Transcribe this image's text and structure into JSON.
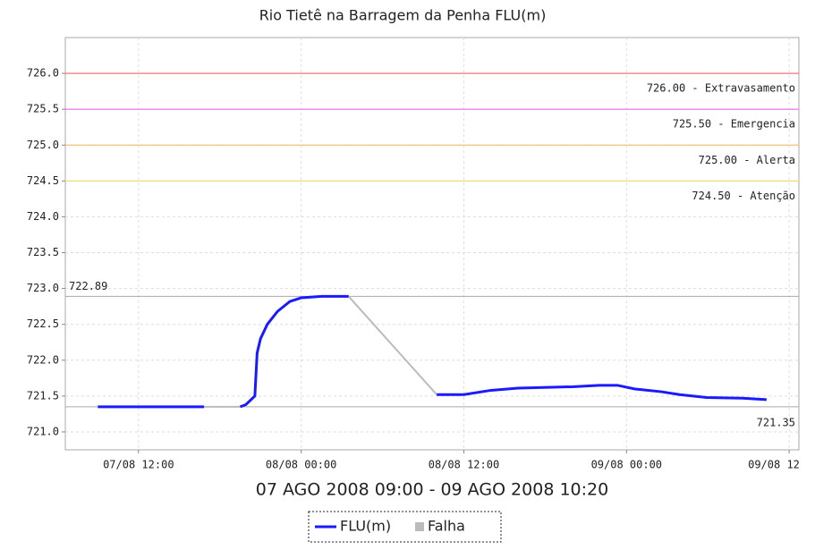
{
  "chart_data": {
    "type": "line",
    "title": "Rio Tietê na Barragem da Penha FLU(m)",
    "xlabel": "07 AGO 2008 09:00 - 09 AGO 2008 10:20",
    "xlim": [
      "07/08 06:36",
      "09/08 12:43"
    ],
    "xticks": [
      "07/08 12:00",
      "08/08 00:00",
      "08/08 12:00",
      "09/08 00:00",
      {
        "value": "09/08 12:00",
        "label": "09/08 12"
      }
    ],
    "ylim": [
      720.75,
      726.5
    ],
    "yticks": [
      {
        "value": 721,
        "label": "721.0"
      },
      721.5,
      {
        "value": 722,
        "label": "722.0"
      },
      722.5,
      {
        "value": 723,
        "label": "723.0"
      },
      723.5,
      {
        "value": 724,
        "label": "724.0"
      },
      724.5,
      {
        "value": 725,
        "label": "725.0"
      },
      725.5,
      {
        "value": 726,
        "label": "726.0"
      }
    ],
    "grid": true,
    "annotations": [
      {
        "value": 726,
        "label": "726.00 - Extravasamento",
        "color": "#f08080"
      },
      {
        "value": 725.5,
        "label": "725.50 - Emergencia",
        "color": "#ee82ee"
      },
      {
        "value": 725,
        "label": "725.00 - Alerta",
        "color": "#f5c07a"
      },
      {
        "value": 724.5,
        "label": "724.50 - Atenção",
        "color": "#eee070"
      }
    ],
    "max": {
      "value": 722.89,
      "label": "722.89"
    },
    "min": {
      "value": 721.35,
      "label": "721.35"
    },
    "series": [
      {
        "name": "FLU(m)",
        "color": "#1a1aff",
        "x": [
          "07/08 09:00",
          "07/08 12:00",
          "07/08 16:50",
          "07/08 18:00",
          "07/08 19:30",
          "07/08 19:55",
          "07/08 20:35",
          "07/08 20:45",
          "07/08 21:00",
          "07/08 21:30",
          "07/08 22:15",
          "07/08 23:10",
          "08/08 00:00",
          "08/08 01:30",
          "08/08 03:30",
          "08/08 06:00",
          "08/08 10:00",
          "08/08 12:00",
          "08/08 14:00",
          "08/08 16:00",
          "08/08 20:00",
          "08/08 22:00",
          "08/08 23:20",
          "09/08 00:35",
          "09/08 02:35",
          "09/08 03:55",
          "09/08 05:55",
          "09/08 08:35",
          "09/08 10:20"
        ],
        "values": [
          721.35,
          721.35,
          721.35,
          null,
          721.35,
          721.38,
          721.5,
          722.1,
          722.3,
          722.5,
          722.68,
          722.82,
          722.87,
          722.89,
          722.89,
          null,
          721.52,
          721.52,
          721.58,
          721.61,
          721.63,
          721.65,
          721.65,
          721.6,
          721.56,
          721.52,
          721.48,
          721.47,
          721.45
        ]
      },
      {
        "name": "Falha",
        "color": "#bbbbbb",
        "x": [
          "07/08 16:50",
          "07/08 19:30",
          "07/08 23:00",
          "08/08 03:30",
          "08/08 10:00"
        ],
        "values": [
          721.35,
          721.35,
          null,
          722.89,
          721.52
        ]
      }
    ]
  }
}
